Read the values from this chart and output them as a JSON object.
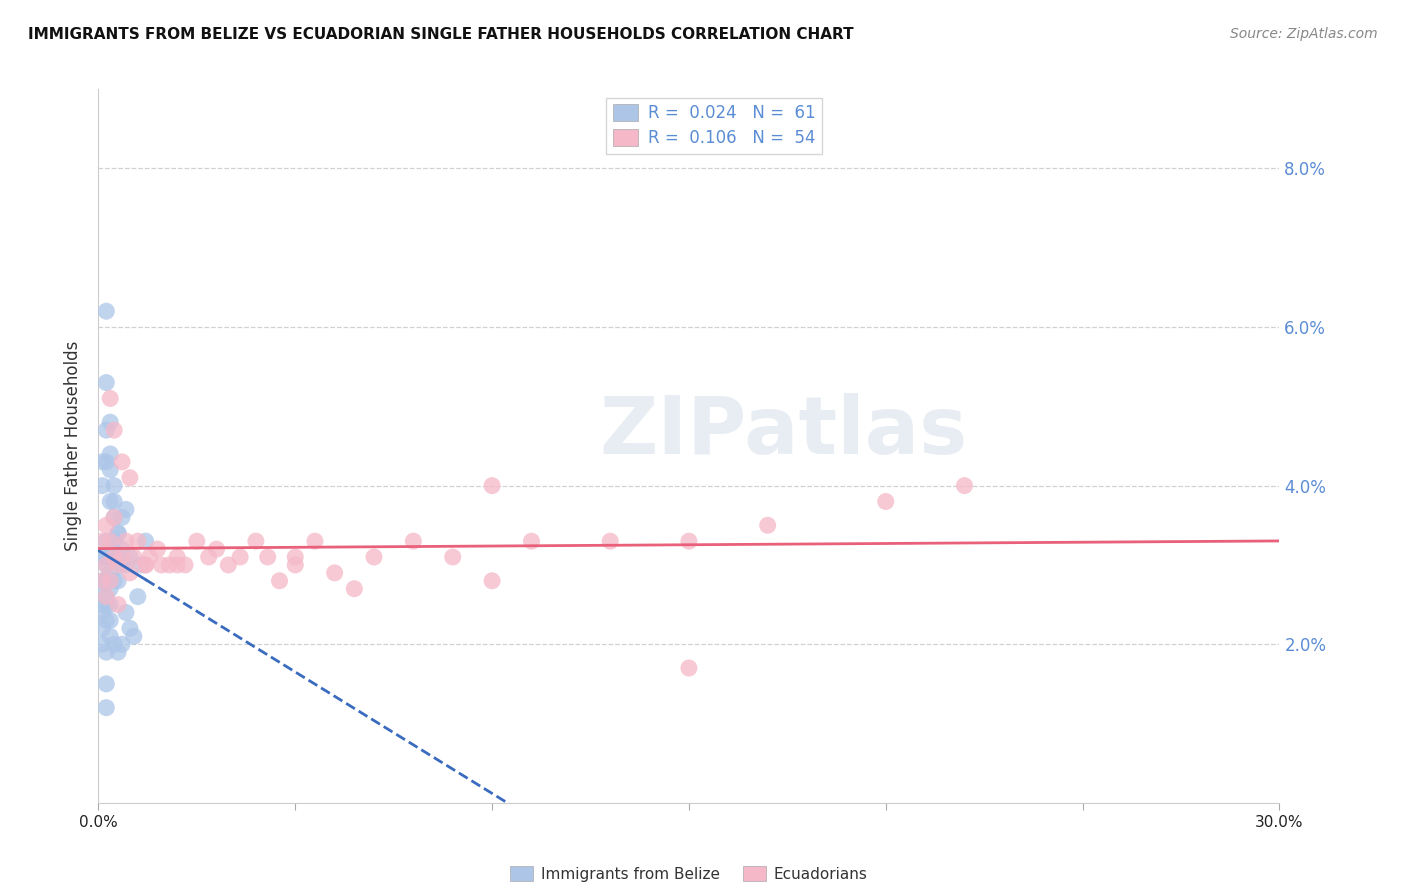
{
  "title": "IMMIGRANTS FROM BELIZE VS ECUADORIAN SINGLE FATHER HOUSEHOLDS CORRELATION CHART",
  "source": "Source: ZipAtlas.com",
  "ylabel": "Single Father Households",
  "belize_color": "#adc6e8",
  "belize_edge_color": "#adc6e8",
  "ecuador_color": "#f5b8c8",
  "ecuador_edge_color": "#f5b8c8",
  "belize_line_color": "#3a6bbf",
  "ecuador_line_color": "#e8607a",
  "right_axis_color": "#5b8dd4",
  "watermark": "ZIPatlas",
  "xlim": [
    0.0,
    0.3
  ],
  "ylim": [
    0.0,
    0.09
  ],
  "yticks_right": [
    0.02,
    0.04,
    0.06,
    0.08
  ],
  "ytick_labels_right": [
    "2.0%",
    "4.0%",
    "6.0%",
    "8.0%"
  ],
  "belize_x": [
    0.001,
    0.001,
    0.001,
    0.001,
    0.001,
    0.001,
    0.002,
    0.002,
    0.002,
    0.002,
    0.002,
    0.002,
    0.002,
    0.003,
    0.003,
    0.003,
    0.003,
    0.003,
    0.003,
    0.003,
    0.004,
    0.004,
    0.004,
    0.004,
    0.005,
    0.005,
    0.005,
    0.006,
    0.006,
    0.007,
    0.007,
    0.008,
    0.009,
    0.01,
    0.011,
    0.012,
    0.001,
    0.001,
    0.002,
    0.002,
    0.003,
    0.003,
    0.004,
    0.004,
    0.005,
    0.006,
    0.007,
    0.008,
    0.001,
    0.002,
    0.003,
    0.004,
    0.005,
    0.006,
    0.002,
    0.002,
    0.003,
    0.003,
    0.002,
    0.002
  ],
  "belize_y": [
    0.031,
    0.028,
    0.027,
    0.025,
    0.024,
    0.022,
    0.033,
    0.031,
    0.03,
    0.028,
    0.026,
    0.025,
    0.023,
    0.032,
    0.031,
    0.029,
    0.028,
    0.027,
    0.025,
    0.023,
    0.038,
    0.033,
    0.031,
    0.028,
    0.034,
    0.031,
    0.028,
    0.036,
    0.032,
    0.03,
    0.024,
    0.022,
    0.021,
    0.026,
    0.03,
    0.033,
    0.043,
    0.04,
    0.047,
    0.043,
    0.042,
    0.038,
    0.04,
    0.036,
    0.034,
    0.03,
    0.037,
    0.031,
    0.02,
    0.019,
    0.021,
    0.02,
    0.019,
    0.02,
    0.062,
    0.053,
    0.048,
    0.044,
    0.015,
    0.012
  ],
  "ecuador_x": [
    0.001,
    0.001,
    0.002,
    0.002,
    0.002,
    0.003,
    0.003,
    0.004,
    0.004,
    0.005,
    0.005,
    0.006,
    0.007,
    0.008,
    0.009,
    0.01,
    0.012,
    0.013,
    0.015,
    0.016,
    0.018,
    0.02,
    0.022,
    0.025,
    0.028,
    0.03,
    0.033,
    0.036,
    0.04,
    0.043,
    0.046,
    0.05,
    0.055,
    0.06,
    0.065,
    0.07,
    0.08,
    0.09,
    0.1,
    0.11,
    0.13,
    0.15,
    0.17,
    0.2,
    0.22,
    0.003,
    0.004,
    0.006,
    0.008,
    0.012,
    0.02,
    0.05,
    0.1,
    0.15
  ],
  "ecuador_y": [
    0.033,
    0.028,
    0.035,
    0.03,
    0.026,
    0.033,
    0.028,
    0.036,
    0.031,
    0.03,
    0.025,
    0.031,
    0.033,
    0.029,
    0.031,
    0.033,
    0.03,
    0.031,
    0.032,
    0.03,
    0.03,
    0.031,
    0.03,
    0.033,
    0.031,
    0.032,
    0.03,
    0.031,
    0.033,
    0.031,
    0.028,
    0.031,
    0.033,
    0.029,
    0.027,
    0.031,
    0.033,
    0.031,
    0.04,
    0.033,
    0.033,
    0.033,
    0.035,
    0.038,
    0.04,
    0.051,
    0.047,
    0.043,
    0.041,
    0.03,
    0.03,
    0.03,
    0.028,
    0.017
  ]
}
